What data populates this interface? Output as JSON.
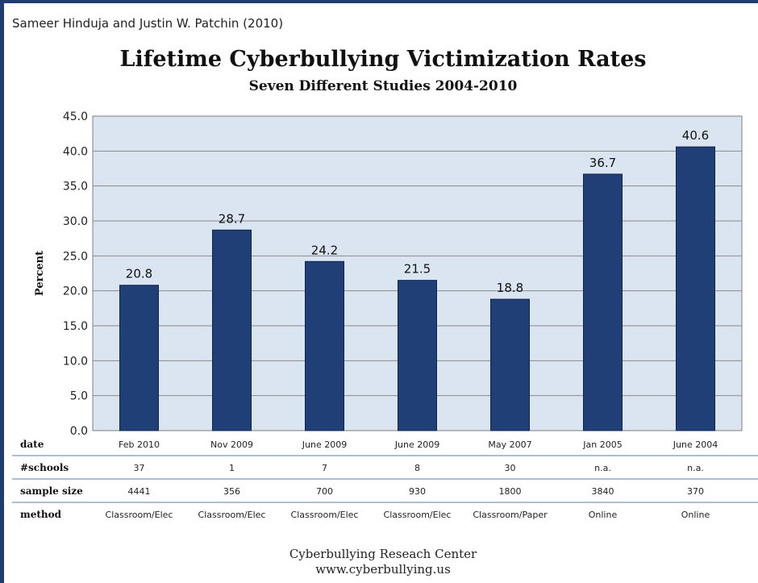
{
  "attribution": "Sameer Hinduja and Justin W. Patchin (2010)",
  "colors": {
    "bar": "#1f3f76",
    "plot_bg": "#dbe5f1",
    "grid": "#8a8a8a",
    "border": "#1f3d73"
  },
  "chart_data": {
    "type": "bar",
    "title": "Lifetime Cyberbullying Victimization Rates",
    "subtitle": "Seven Different Studies 2004-2010",
    "ylabel": "Percent",
    "ylim": [
      0,
      45
    ],
    "yticks": [
      "0.0",
      "5.0",
      "10.0",
      "15.0",
      "20.0",
      "25.0",
      "30.0",
      "35.0",
      "40.0",
      "45.0"
    ],
    "grid": true,
    "categories": [
      "Feb 2010",
      "Nov 2009",
      "June 2009",
      "June 2009",
      "May 2007",
      "Jan 2005",
      "June 2004"
    ],
    "values": [
      20.8,
      28.7,
      24.2,
      21.5,
      18.8,
      36.7,
      40.6
    ],
    "data_labels": [
      "20.8",
      "28.7",
      "24.2",
      "21.5",
      "18.8",
      "36.7",
      "40.6"
    ]
  },
  "table": {
    "rows": [
      {
        "label": "date",
        "values": [
          "Feb 2010",
          "Nov 2009",
          "June 2009",
          "June 2009",
          "May 2007",
          "Jan 2005",
          "June 2004"
        ]
      },
      {
        "label": "#schools",
        "values": [
          "37",
          "1",
          "7",
          "8",
          "30",
          "n.a.",
          "n.a."
        ]
      },
      {
        "label": "sample size",
        "values": [
          "4441",
          "356",
          "700",
          "930",
          "1800",
          "3840",
          "370"
        ]
      },
      {
        "label": "method",
        "values": [
          "Classroom/Elec",
          "Classroom/Elec",
          "Classroom/Elec",
          "Classroom/Elec",
          "Classroom/Paper",
          "Online",
          "Online"
        ]
      }
    ]
  },
  "footer": {
    "line1": "Cyberbullying Reseach Center",
    "line2": "www.cyberbullying.us"
  }
}
